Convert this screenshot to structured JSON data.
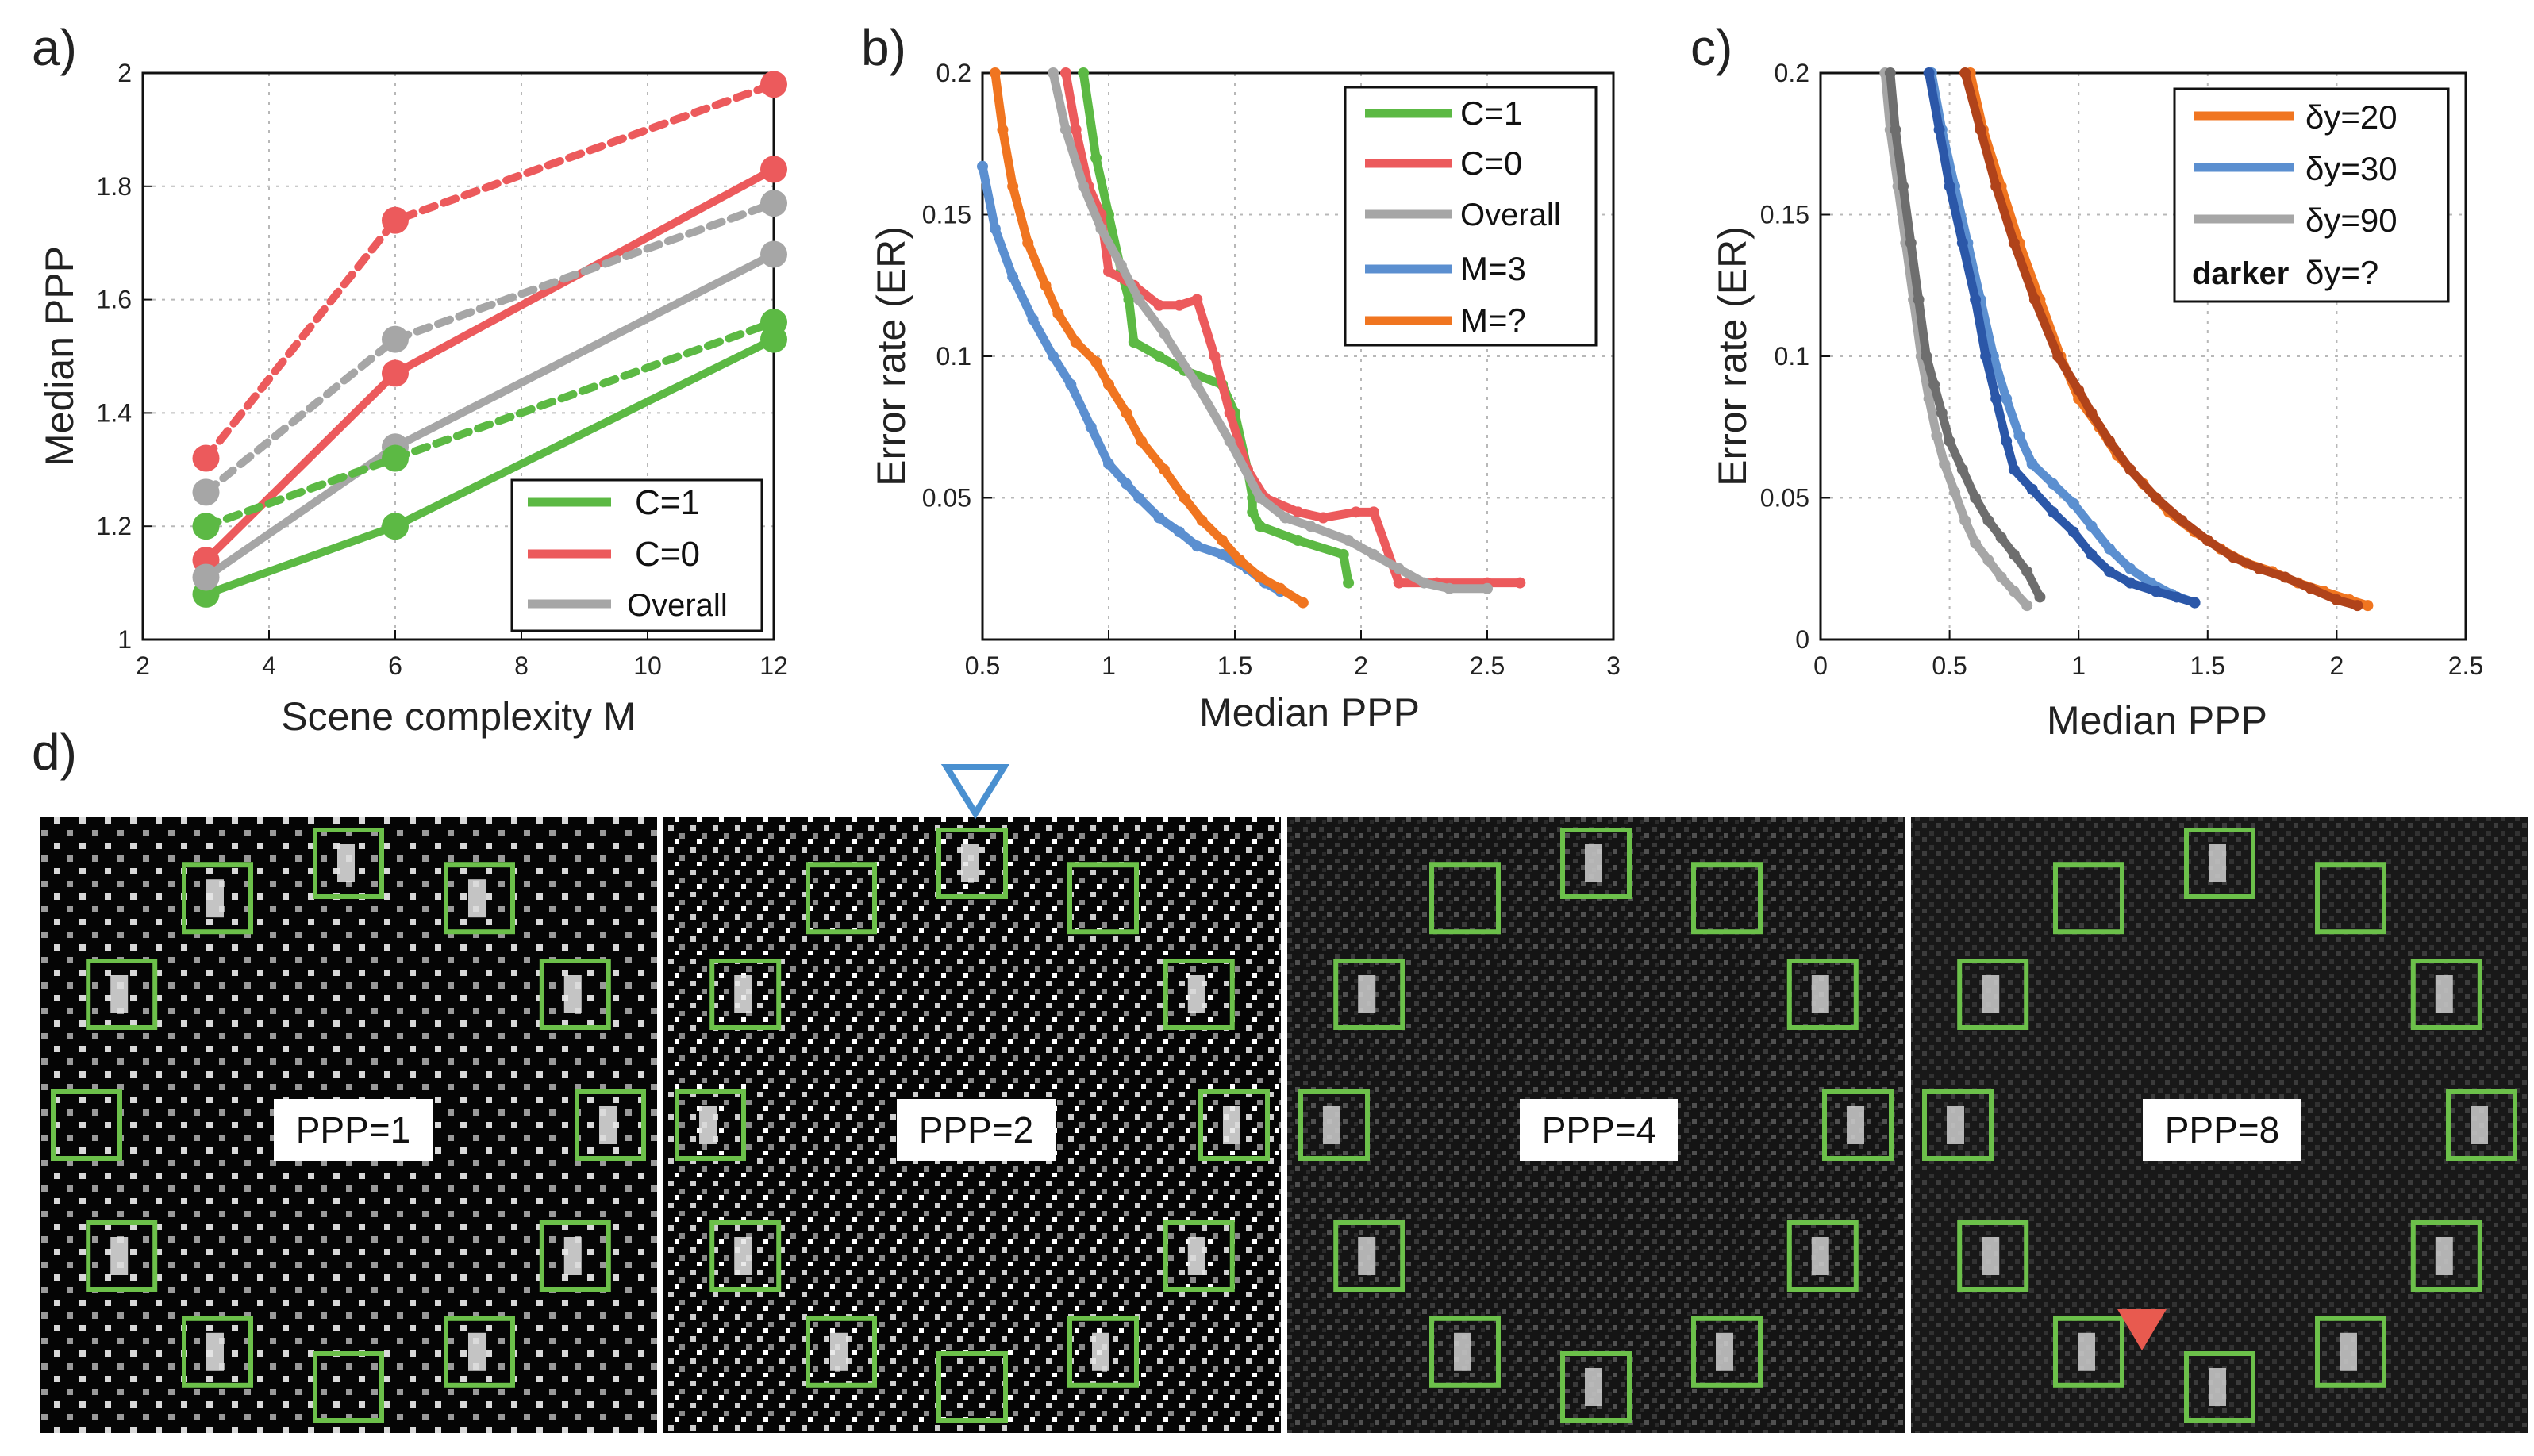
{
  "panel_labels": [
    "a)",
    "b)",
    "c)",
    "d)"
  ],
  "colors": {
    "green": "#5cb944",
    "red": "#ec5a5c",
    "gray": "#a6a6a6",
    "blue": "#5b8fd0",
    "orange": "#f07520",
    "gray_dark": "#6e6e6e",
    "blue_dark": "#2b57a8",
    "orange_dark": "#b0431a",
    "box_green": "#6cc04a",
    "marker_blue": "#4a90d0",
    "marker_red": "#e85a4f"
  },
  "chart_data": [
    {
      "panel": "a)",
      "type": "line",
      "xlabel": "Scene complexity M",
      "ylabel": "Median PPP",
      "xlim": [
        2,
        12
      ],
      "ylim": [
        1,
        2
      ],
      "xticks": [
        "2",
        "4",
        "6",
        "8",
        "10",
        "12"
      ],
      "yticks": [
        "1",
        "1.2",
        "1.4",
        "1.6",
        "1.8",
        "2"
      ],
      "grid": true,
      "legend_position": "bottom-right",
      "legend": [
        {
          "label": "C=1",
          "color": "#5cb944"
        },
        {
          "label": "C=0",
          "color": "#ec5a5c"
        },
        {
          "label": "Overall",
          "color": "#a6a6a6"
        }
      ],
      "x": [
        3,
        6,
        12
      ],
      "series": [
        {
          "name": "C=1",
          "style": "solid",
          "color": "#5cb944",
          "values": [
            1.08,
            1.2,
            1.53
          ]
        },
        {
          "name": "C=0",
          "style": "solid",
          "color": "#ec5a5c",
          "values": [
            1.14,
            1.47,
            1.83
          ]
        },
        {
          "name": "Overall",
          "style": "solid",
          "color": "#a6a6a6",
          "values": [
            1.11,
            1.34,
            1.68
          ]
        },
        {
          "name": "C=1",
          "style": "dashed",
          "color": "#5cb944",
          "values": [
            1.2,
            1.32,
            1.56
          ]
        },
        {
          "name": "C=0",
          "style": "dashed",
          "color": "#ec5a5c",
          "values": [
            1.32,
            1.74,
            1.98
          ]
        },
        {
          "name": "Overall",
          "style": "dashed",
          "color": "#a6a6a6",
          "values": [
            1.26,
            1.53,
            1.77
          ]
        }
      ]
    },
    {
      "panel": "b)",
      "type": "line",
      "xlabel": "Median PPP",
      "ylabel": "Error rate (ER)",
      "xlim": [
        0.5,
        3
      ],
      "ylim": [
        0,
        0.2
      ],
      "xticks": [
        "0.5",
        "1",
        "1.5",
        "2",
        "2.5",
        "3"
      ],
      "yticks": [
        "",
        "0.05",
        "0.1",
        "0.15",
        "0.2"
      ],
      "grid": true,
      "legend_position": "top-right",
      "legend": [
        {
          "label": "C=1",
          "color": "#5cb944"
        },
        {
          "label": "C=0",
          "color": "#ec5a5c"
        },
        {
          "label": "Overall",
          "color": "#a6a6a6"
        },
        {
          "label": "M=3",
          "color": "#5b8fd0"
        },
        {
          "label": "M=?",
          "color": "#f07520"
        }
      ],
      "series": [
        {
          "name": "C=1",
          "color": "#5cb944",
          "points": [
            [
              0.9,
              0.2
            ],
            [
              0.95,
              0.17
            ],
            [
              1.0,
              0.15
            ],
            [
              1.05,
              0.13
            ],
            [
              1.08,
              0.12
            ],
            [
              1.1,
              0.105
            ],
            [
              1.2,
              0.1
            ],
            [
              1.3,
              0.095
            ],
            [
              1.45,
              0.09
            ],
            [
              1.5,
              0.08
            ],
            [
              1.55,
              0.06
            ],
            [
              1.57,
              0.05
            ],
            [
              1.57,
              0.045
            ],
            [
              1.6,
              0.04
            ],
            [
              1.75,
              0.035
            ],
            [
              1.93,
              0.03
            ],
            [
              1.95,
              0.02
            ]
          ]
        },
        {
          "name": "C=0",
          "color": "#ec5a5c",
          "points": [
            [
              0.83,
              0.2
            ],
            [
              0.87,
              0.18
            ],
            [
              0.92,
              0.16
            ],
            [
              0.97,
              0.15
            ],
            [
              1.0,
              0.13
            ],
            [
              1.1,
              0.125
            ],
            [
              1.2,
              0.118
            ],
            [
              1.28,
              0.118
            ],
            [
              1.35,
              0.12
            ],
            [
              1.42,
              0.1
            ],
            [
              1.48,
              0.08
            ],
            [
              1.55,
              0.06
            ],
            [
              1.62,
              0.05
            ],
            [
              1.75,
              0.045
            ],
            [
              1.85,
              0.043
            ],
            [
              1.98,
              0.045
            ],
            [
              2.05,
              0.045
            ],
            [
              2.15,
              0.02
            ],
            [
              2.3,
              0.02
            ],
            [
              2.5,
              0.02
            ],
            [
              2.63,
              0.02
            ]
          ]
        },
        {
          "name": "Overall",
          "color": "#a6a6a6",
          "points": [
            [
              0.78,
              0.2
            ],
            [
              0.83,
              0.18
            ],
            [
              0.9,
              0.16
            ],
            [
              0.97,
              0.145
            ],
            [
              1.05,
              0.132
            ],
            [
              1.12,
              0.12
            ],
            [
              1.22,
              0.108
            ],
            [
              1.35,
              0.09
            ],
            [
              1.48,
              0.07
            ],
            [
              1.6,
              0.05
            ],
            [
              1.7,
              0.043
            ],
            [
              1.8,
              0.04
            ],
            [
              1.95,
              0.035
            ],
            [
              2.05,
              0.03
            ],
            [
              2.15,
              0.025
            ],
            [
              2.25,
              0.02
            ],
            [
              2.35,
              0.018
            ],
            [
              2.5,
              0.018
            ]
          ]
        },
        {
          "name": "M=3",
          "color": "#5b8fd0",
          "points": [
            [
              0.5,
              0.167
            ],
            [
              0.55,
              0.145
            ],
            [
              0.62,
              0.128
            ],
            [
              0.7,
              0.113
            ],
            [
              0.78,
              0.1
            ],
            [
              0.85,
              0.09
            ],
            [
              0.93,
              0.075
            ],
            [
              1.0,
              0.062
            ],
            [
              1.07,
              0.055
            ],
            [
              1.12,
              0.05
            ],
            [
              1.2,
              0.043
            ],
            [
              1.28,
              0.038
            ],
            [
              1.35,
              0.033
            ],
            [
              1.45,
              0.03
            ],
            [
              1.55,
              0.025
            ],
            [
              1.62,
              0.02
            ],
            [
              1.68,
              0.017
            ]
          ]
        },
        {
          "name": "M=?",
          "color": "#f07520",
          "points": [
            [
              0.55,
              0.2
            ],
            [
              0.58,
              0.18
            ],
            [
              0.62,
              0.16
            ],
            [
              0.68,
              0.14
            ],
            [
              0.75,
              0.125
            ],
            [
              0.8,
              0.115
            ],
            [
              0.87,
              0.105
            ],
            [
              0.95,
              0.098
            ],
            [
              1.0,
              0.09
            ],
            [
              1.07,
              0.08
            ],
            [
              1.13,
              0.07
            ],
            [
              1.22,
              0.06
            ],
            [
              1.3,
              0.05
            ],
            [
              1.37,
              0.042
            ],
            [
              1.45,
              0.035
            ],
            [
              1.52,
              0.028
            ],
            [
              1.6,
              0.022
            ],
            [
              1.68,
              0.018
            ],
            [
              1.77,
              0.013
            ]
          ]
        }
      ]
    },
    {
      "panel": "c)",
      "type": "line",
      "xlabel": "Median PPP",
      "ylabel": "Error rate (ER)",
      "xlim": [
        0,
        2.5
      ],
      "ylim": [
        0,
        0.2
      ],
      "xticks": [
        "0",
        "0.5",
        "1",
        "1.5",
        "2",
        "2.5"
      ],
      "yticks": [
        "0",
        "0.05",
        "0.1",
        "0.15",
        "0.2"
      ],
      "grid": true,
      "legend_position": "top-right",
      "legend": [
        {
          "label": "δy=20",
          "color": "#f07520",
          "bold": false
        },
        {
          "label": "δy=30",
          "color": "#5b8fd0",
          "bold": false
        },
        {
          "label": "δy=90",
          "color": "#a6a6a6",
          "bold": false
        },
        {
          "label": "δy=?",
          "prefix": "darker",
          "color": "",
          "bold": true
        }
      ],
      "series": [
        {
          "name": "δy=20",
          "color": "#f07520",
          "points": [
            [
              0.58,
              0.2
            ],
            [
              0.63,
              0.18
            ],
            [
              0.7,
              0.16
            ],
            [
              0.77,
              0.14
            ],
            [
              0.85,
              0.12
            ],
            [
              0.93,
              0.1
            ],
            [
              1.0,
              0.085
            ],
            [
              1.08,
              0.075
            ],
            [
              1.15,
              0.065
            ],
            [
              1.25,
              0.055
            ],
            [
              1.35,
              0.045
            ],
            [
              1.45,
              0.038
            ],
            [
              1.55,
              0.032
            ],
            [
              1.65,
              0.027
            ],
            [
              1.75,
              0.024
            ],
            [
              1.85,
              0.02
            ],
            [
              1.95,
              0.017
            ],
            [
              2.05,
              0.014
            ],
            [
              2.12,
              0.012
            ]
          ]
        },
        {
          "name": "δy=20 darker",
          "color": "#b0431a",
          "points": [
            [
              0.56,
              0.2
            ],
            [
              0.62,
              0.18
            ],
            [
              0.68,
              0.16
            ],
            [
              0.75,
              0.14
            ],
            [
              0.83,
              0.12
            ],
            [
              0.92,
              0.1
            ],
            [
              1.0,
              0.088
            ],
            [
              1.05,
              0.08
            ],
            [
              1.12,
              0.07
            ],
            [
              1.2,
              0.06
            ],
            [
              1.3,
              0.05
            ],
            [
              1.4,
              0.042
            ],
            [
              1.5,
              0.035
            ],
            [
              1.6,
              0.029
            ],
            [
              1.7,
              0.025
            ],
            [
              1.8,
              0.022
            ],
            [
              1.9,
              0.018
            ],
            [
              2.0,
              0.014
            ],
            [
              2.08,
              0.012
            ]
          ]
        },
        {
          "name": "δy=30",
          "color": "#5b8fd0",
          "points": [
            [
              0.43,
              0.2
            ],
            [
              0.47,
              0.18
            ],
            [
              0.52,
              0.16
            ],
            [
              0.57,
              0.14
            ],
            [
              0.62,
              0.12
            ],
            [
              0.67,
              0.1
            ],
            [
              0.72,
              0.085
            ],
            [
              0.77,
              0.072
            ],
            [
              0.82,
              0.062
            ],
            [
              0.9,
              0.055
            ],
            [
              0.98,
              0.048
            ],
            [
              1.05,
              0.04
            ],
            [
              1.12,
              0.032
            ],
            [
              1.2,
              0.025
            ],
            [
              1.28,
              0.02
            ],
            [
              1.36,
              0.016
            ],
            [
              1.45,
              0.013
            ]
          ]
        },
        {
          "name": "δy=30 darker",
          "color": "#2b57a8",
          "points": [
            [
              0.42,
              0.2
            ],
            [
              0.46,
              0.18
            ],
            [
              0.5,
              0.16
            ],
            [
              0.55,
              0.14
            ],
            [
              0.6,
              0.12
            ],
            [
              0.64,
              0.1
            ],
            [
              0.68,
              0.085
            ],
            [
              0.72,
              0.07
            ],
            [
              0.75,
              0.06
            ],
            [
              0.82,
              0.053
            ],
            [
              0.9,
              0.045
            ],
            [
              0.98,
              0.038
            ],
            [
              1.05,
              0.03
            ],
            [
              1.12,
              0.024
            ],
            [
              1.2,
              0.02
            ],
            [
              1.3,
              0.017
            ],
            [
              1.38,
              0.015
            ],
            [
              1.45,
              0.013
            ]
          ]
        },
        {
          "name": "δy=90",
          "color": "#a6a6a6",
          "points": [
            [
              0.25,
              0.2
            ],
            [
              0.27,
              0.18
            ],
            [
              0.3,
              0.16
            ],
            [
              0.33,
              0.14
            ],
            [
              0.36,
              0.12
            ],
            [
              0.39,
              0.1
            ],
            [
              0.42,
              0.085
            ],
            [
              0.45,
              0.072
            ],
            [
              0.48,
              0.062
            ],
            [
              0.52,
              0.052
            ],
            [
              0.56,
              0.042
            ],
            [
              0.6,
              0.034
            ],
            [
              0.65,
              0.028
            ],
            [
              0.7,
              0.022
            ],
            [
              0.75,
              0.017
            ],
            [
              0.8,
              0.012
            ]
          ]
        },
        {
          "name": "δy=90 darker",
          "color": "#6e6e6e",
          "points": [
            [
              0.27,
              0.2
            ],
            [
              0.29,
              0.18
            ],
            [
              0.32,
              0.16
            ],
            [
              0.35,
              0.14
            ],
            [
              0.38,
              0.12
            ],
            [
              0.41,
              0.1
            ],
            [
              0.44,
              0.09
            ],
            [
              0.47,
              0.08
            ],
            [
              0.5,
              0.07
            ],
            [
              0.55,
              0.06
            ],
            [
              0.6,
              0.05
            ],
            [
              0.65,
              0.042
            ],
            [
              0.7,
              0.036
            ],
            [
              0.75,
              0.03
            ],
            [
              0.8,
              0.024
            ],
            [
              0.85,
              0.015
            ]
          ]
        }
      ]
    }
  ],
  "panel_d": {
    "tiles": [
      {
        "label": "PPP=1"
      },
      {
        "label": "PPP=2"
      },
      {
        "label": "PPP=4"
      },
      {
        "label": "PPP=8"
      }
    ]
  }
}
